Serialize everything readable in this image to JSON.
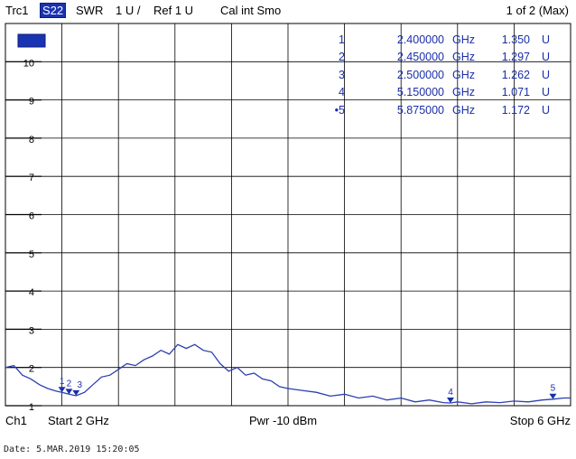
{
  "header": {
    "trace": "Trc1",
    "param": "S22",
    "format": "SWR",
    "scale": "1 U /",
    "ref": "Ref 1 U",
    "cal": "Cal int Smo",
    "page": "1 of 2 (Max)"
  },
  "footer": {
    "channel": "Ch1",
    "start": "Start  2 GHz",
    "power": "Pwr  -10 dBm",
    "stop": "Stop  6 GHz",
    "date": "Date: 5.MAR.2019  15:20:05"
  },
  "markers": [
    {
      "index": "1",
      "freq": "2.400000",
      "freq_unit": "GHz",
      "value": "1.350",
      "unit": "U"
    },
    {
      "index": "2",
      "freq": "2.450000",
      "freq_unit": "GHz",
      "value": "1.297",
      "unit": "U"
    },
    {
      "index": "3",
      "freq": "2.500000",
      "freq_unit": "GHz",
      "value": "1.262",
      "unit": "U"
    },
    {
      "index": "4",
      "freq": "5.150000",
      "freq_unit": "GHz",
      "value": "1.071",
      "unit": "U"
    },
    {
      "index": "•5",
      "freq": "5.875000",
      "freq_unit": "GHz",
      "value": "1.172",
      "unit": "U"
    }
  ],
  "chart_data": {
    "type": "line",
    "xlim": [
      2,
      6
    ],
    "ylim": [
      1,
      11
    ],
    "y_ticks": [
      "10",
      "9",
      "8",
      "7",
      "6",
      "5",
      "4",
      "3",
      "2",
      "1"
    ],
    "grid": true,
    "colors": {
      "trace": "#2b3fb0",
      "grid": "#000000",
      "marker": "#1a2fa8",
      "chip": "#1a33b0"
    },
    "series": [
      {
        "x": [
          2.0,
          2.06,
          2.12,
          2.18,
          2.24,
          2.3,
          2.36,
          2.4,
          2.45,
          2.5,
          2.56,
          2.62,
          2.68,
          2.74,
          2.8,
          2.86,
          2.92,
          2.98,
          3.04,
          3.1,
          3.16,
          3.22,
          3.28,
          3.34,
          3.4,
          3.46,
          3.52,
          3.58,
          3.64,
          3.7,
          3.76,
          3.82,
          3.88,
          3.94,
          4.0,
          4.1,
          4.2,
          4.3,
          4.4,
          4.5,
          4.6,
          4.7,
          4.8,
          4.9,
          5.0,
          5.1,
          5.15,
          5.2,
          5.3,
          5.4,
          5.5,
          5.6,
          5.7,
          5.8,
          5.875,
          5.95,
          6.0
        ],
        "y": [
          2.0,
          2.05,
          1.8,
          1.7,
          1.55,
          1.45,
          1.38,
          1.35,
          1.3,
          1.26,
          1.35,
          1.55,
          1.75,
          1.8,
          1.95,
          2.1,
          2.05,
          2.2,
          2.3,
          2.45,
          2.35,
          2.6,
          2.5,
          2.6,
          2.45,
          2.4,
          2.1,
          1.9,
          2.0,
          1.8,
          1.85,
          1.7,
          1.65,
          1.5,
          1.45,
          1.4,
          1.35,
          1.25,
          1.3,
          1.2,
          1.25,
          1.15,
          1.2,
          1.1,
          1.15,
          1.08,
          1.07,
          1.1,
          1.05,
          1.1,
          1.08,
          1.12,
          1.1,
          1.15,
          1.17,
          1.2,
          1.2
        ]
      }
    ],
    "marker_points": [
      {
        "label": "1",
        "x": 2.4,
        "y": 1.35
      },
      {
        "label": "2",
        "x": 2.45,
        "y": 1.297
      },
      {
        "label": "3",
        "x": 2.5,
        "y": 1.262
      },
      {
        "label": "4",
        "x": 5.15,
        "y": 1.071
      },
      {
        "label": "5",
        "x": 5.875,
        "y": 1.172
      }
    ]
  }
}
